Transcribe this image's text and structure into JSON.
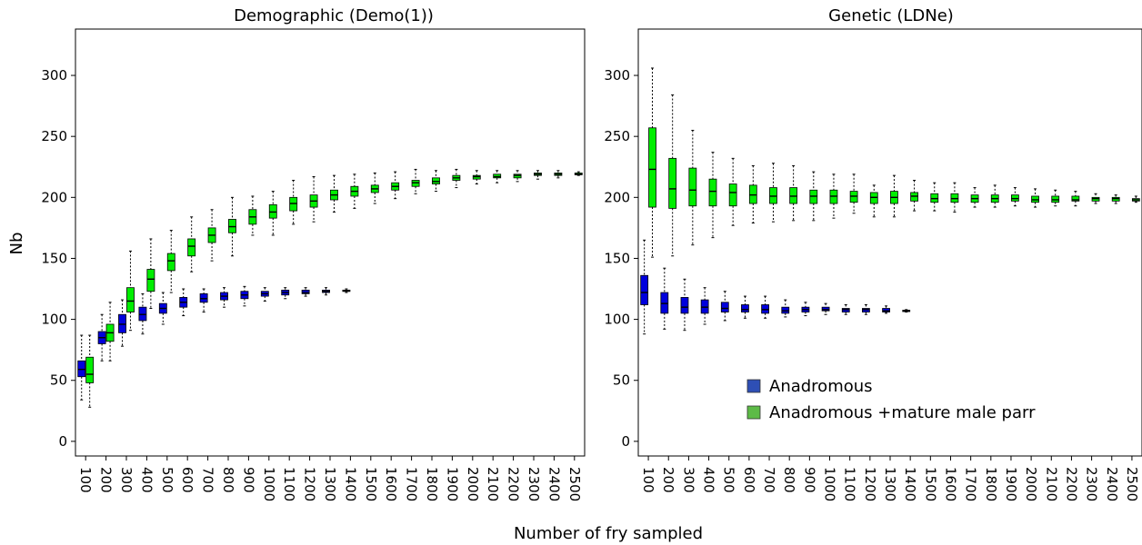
{
  "figure": {
    "xlabel": "Number of fry sampled",
    "ylabel": "Nb"
  },
  "legend": {
    "items": [
      {
        "label": "Anadromous",
        "color": "#2e4fb5"
      },
      {
        "label": "Anadromous +mature male parr",
        "color": "#5dbb47"
      }
    ]
  },
  "chart_data": [
    {
      "type": "box",
      "title": "Demographic (Demo(1))",
      "xlabel": "Number of fry sampled",
      "ylabel": "Nb",
      "ylim": [
        -12,
        338
      ],
      "yticks": [
        0,
        50,
        100,
        150,
        200,
        250,
        300
      ],
      "categories": [
        "100",
        "200",
        "300",
        "400",
        "500",
        "600",
        "700",
        "800",
        "900",
        "1000",
        "1100",
        "1200",
        "1300",
        "1400",
        "1500",
        "1600",
        "1700",
        "1800",
        "1900",
        "2000",
        "2100",
        "2200",
        "2300",
        "2400",
        "2500"
      ],
      "series": [
        {
          "name": "Anadromous",
          "color": "#0000dd",
          "boxes": [
            {
              "x": "100",
              "min": 34,
              "q1": 53,
              "med": 59,
              "q3": 66,
              "max": 87
            },
            {
              "x": "200",
              "min": 66,
              "q1": 80,
              "med": 85,
              "q3": 90,
              "max": 104
            },
            {
              "x": "300",
              "min": 78,
              "q1": 89,
              "med": 96,
              "q3": 104,
              "max": 116
            },
            {
              "x": "400",
              "min": 88,
              "q1": 99,
              "med": 104,
              "q3": 110,
              "max": 121
            },
            {
              "x": "500",
              "min": 96,
              "q1": 105,
              "med": 109,
              "q3": 113,
              "max": 122
            },
            {
              "x": "600",
              "min": 103,
              "q1": 110,
              "med": 114,
              "q3": 118,
              "max": 125
            },
            {
              "x": "700",
              "min": 106,
              "q1": 114,
              "med": 117,
              "q3": 121,
              "max": 125
            },
            {
              "x": "800",
              "min": 110,
              "q1": 116,
              "med": 119,
              "q3": 122,
              "max": 126
            },
            {
              "x": "900",
              "min": 111,
              "q1": 117,
              "med": 120,
              "q3": 123,
              "max": 127
            },
            {
              "x": "1000",
              "min": 115,
              "q1": 119,
              "med": 121,
              "q3": 123,
              "max": 126
            },
            {
              "x": "1100",
              "min": 117,
              "q1": 120,
              "med": 122,
              "q3": 124,
              "max": 126
            },
            {
              "x": "1200",
              "min": 119,
              "q1": 121,
              "med": 122,
              "q3": 124,
              "max": 126
            },
            {
              "x": "1300",
              "min": 120,
              "q1": 122,
              "med": 123,
              "q3": 124,
              "max": 126
            },
            {
              "x": "1400",
              "min": 122,
              "q1": 123,
              "med": 123.5,
              "q3": 124,
              "max": 125
            }
          ]
        },
        {
          "name": "Anadromous +mature male parr",
          "color": "#00ee00",
          "boxes": [
            {
              "x": "100",
              "min": 28,
              "q1": 48,
              "med": 55,
              "q3": 69,
              "max": 87
            },
            {
              "x": "200",
              "min": 66,
              "q1": 82,
              "med": 89,
              "q3": 96,
              "max": 114
            },
            {
              "x": "300",
              "min": 91,
              "q1": 106,
              "med": 115,
              "q3": 126,
              "max": 156
            },
            {
              "x": "400",
              "min": 109,
              "q1": 123,
              "med": 133,
              "q3": 141,
              "max": 166
            },
            {
              "x": "500",
              "min": 122,
              "q1": 140,
              "med": 148,
              "q3": 154,
              "max": 173
            },
            {
              "x": "600",
              "min": 139,
              "q1": 152,
              "med": 160,
              "q3": 166,
              "max": 184
            },
            {
              "x": "700",
              "min": 148,
              "q1": 163,
              "med": 169,
              "q3": 175,
              "max": 190
            },
            {
              "x": "800",
              "min": 152,
              "q1": 171,
              "med": 176,
              "q3": 182,
              "max": 200
            },
            {
              "x": "900",
              "min": 169,
              "q1": 178,
              "med": 184,
              "q3": 190,
              "max": 201
            },
            {
              "x": "1000",
              "min": 169,
              "q1": 183,
              "med": 188,
              "q3": 194,
              "max": 205
            },
            {
              "x": "1100",
              "min": 178,
              "q1": 189,
              "med": 195,
              "q3": 200,
              "max": 214
            },
            {
              "x": "1200",
              "min": 180,
              "q1": 192,
              "med": 197,
              "q3": 202,
              "max": 217
            },
            {
              "x": "1300",
              "min": 188,
              "q1": 198,
              "med": 202,
              "q3": 206,
              "max": 218
            },
            {
              "x": "1400",
              "min": 191,
              "q1": 201,
              "med": 205,
              "q3": 209,
              "max": 219
            },
            {
              "x": "1500",
              "min": 195,
              "q1": 204,
              "med": 207,
              "q3": 210,
              "max": 220
            },
            {
              "x": "1600",
              "min": 199,
              "q1": 206,
              "med": 209,
              "q3": 212,
              "max": 221
            },
            {
              "x": "1700",
              "min": 203,
              "q1": 209,
              "med": 212,
              "q3": 214,
              "max": 223
            },
            {
              "x": "1800",
              "min": 205,
              "q1": 211,
              "med": 213,
              "q3": 216,
              "max": 222
            },
            {
              "x": "1900",
              "min": 208,
              "q1": 214,
              "med": 216,
              "q3": 218,
              "max": 223
            },
            {
              "x": "2000",
              "min": 211,
              "q1": 215,
              "med": 217,
              "q3": 218,
              "max": 222
            },
            {
              "x": "2100",
              "min": 212,
              "q1": 216,
              "med": 217,
              "q3": 219,
              "max": 222
            },
            {
              "x": "2200",
              "min": 213,
              "q1": 216,
              "med": 218,
              "q3": 219,
              "max": 222
            },
            {
              "x": "2300",
              "min": 215,
              "q1": 218,
              "med": 219,
              "q3": 220,
              "max": 222
            },
            {
              "x": "2400",
              "min": 216,
              "q1": 218,
              "med": 219,
              "q3": 220,
              "max": 222
            },
            {
              "x": "2500",
              "min": 218,
              "q1": 218.5,
              "med": 219,
              "q3": 220,
              "max": 221
            }
          ]
        }
      ]
    },
    {
      "type": "box",
      "title": "Genetic (LDNe)",
      "xlabel": "Number of fry sampled",
      "ylabel": "Nb",
      "ylim": [
        -12,
        338
      ],
      "yticks": [
        0,
        50,
        100,
        150,
        200,
        250,
        300
      ],
      "categories": [
        "100",
        "200",
        "300",
        "400",
        "500",
        "600",
        "700",
        "800",
        "900",
        "1000",
        "1100",
        "1200",
        "1300",
        "1400",
        "1500",
        "1600",
        "1700",
        "1800",
        "1900",
        "2000",
        "2100",
        "2200",
        "2300",
        "2400",
        "2500"
      ],
      "series": [
        {
          "name": "Anadromous",
          "color": "#0000dd",
          "boxes": [
            {
              "x": "100",
              "min": 88,
              "q1": 112,
              "med": 122,
              "q3": 136,
              "max": 165
            },
            {
              "x": "200",
              "min": 92,
              "q1": 105,
              "med": 113,
              "q3": 122,
              "max": 142
            },
            {
              "x": "300",
              "min": 91,
              "q1": 105,
              "med": 110,
              "q3": 118,
              "max": 133
            },
            {
              "x": "400",
              "min": 96,
              "q1": 105,
              "med": 110,
              "q3": 116,
              "max": 126
            },
            {
              "x": "500",
              "min": 99,
              "q1": 106,
              "med": 109,
              "q3": 114,
              "max": 123
            },
            {
              "x": "600",
              "min": 101,
              "q1": 106,
              "med": 108,
              "q3": 112,
              "max": 119
            },
            {
              "x": "700",
              "min": 101,
              "q1": 105,
              "med": 108,
              "q3": 112,
              "max": 119
            },
            {
              "x": "800",
              "min": 102,
              "q1": 105,
              "med": 107,
              "q3": 110,
              "max": 116
            },
            {
              "x": "900",
              "min": 103,
              "q1": 106,
              "med": 108,
              "q3": 110,
              "max": 114
            },
            {
              "x": "1000",
              "min": 104,
              "q1": 107,
              "med": 108,
              "q3": 110,
              "max": 113
            },
            {
              "x": "1100",
              "min": 104,
              "q1": 106,
              "med": 108,
              "q3": 109,
              "max": 112
            },
            {
              "x": "1200",
              "min": 104,
              "q1": 106,
              "med": 108,
              "q3": 109,
              "max": 112
            },
            {
              "x": "1300",
              "min": 105,
              "q1": 106,
              "med": 107,
              "q3": 109,
              "max": 111
            },
            {
              "x": "1400",
              "min": 106,
              "q1": 106.5,
              "med": 107,
              "q3": 107.5,
              "max": 108
            }
          ]
        },
        {
          "name": "Anadromous +mature male parr",
          "color": "#00ee00",
          "boxes": [
            {
              "x": "100",
              "min": 151,
              "q1": 192,
              "med": 223,
              "q3": 257,
              "max": 306
            },
            {
              "x": "200",
              "min": 152,
              "q1": 191,
              "med": 207,
              "q3": 232,
              "max": 284
            },
            {
              "x": "300",
              "min": 161,
              "q1": 193,
              "med": 206,
              "q3": 224,
              "max": 255
            },
            {
              "x": "400",
              "min": 167,
              "q1": 193,
              "med": 205,
              "q3": 215,
              "max": 237
            },
            {
              "x": "500",
              "min": 177,
              "q1": 193,
              "med": 204,
              "q3": 211,
              "max": 232
            },
            {
              "x": "600",
              "min": 179,
              "q1": 195,
              "med": 202,
              "q3": 210,
              "max": 226
            },
            {
              "x": "700",
              "min": 180,
              "q1": 195,
              "med": 201,
              "q3": 208,
              "max": 228
            },
            {
              "x": "800",
              "min": 181,
              "q1": 195,
              "med": 201,
              "q3": 208,
              "max": 226
            },
            {
              "x": "900",
              "min": 181,
              "q1": 195,
              "med": 201,
              "q3": 206,
              "max": 221
            },
            {
              "x": "1000",
              "min": 183,
              "q1": 195,
              "med": 201,
              "q3": 206,
              "max": 219
            },
            {
              "x": "1100",
              "min": 187,
              "q1": 196,
              "med": 201,
              "q3": 205,
              "max": 219
            },
            {
              "x": "1200",
              "min": 184,
              "q1": 195,
              "med": 200,
              "q3": 204,
              "max": 210
            },
            {
              "x": "1300",
              "min": 184,
              "q1": 195,
              "med": 200,
              "q3": 205,
              "max": 218
            },
            {
              "x": "1400",
              "min": 189,
              "q1": 197,
              "med": 201,
              "q3": 204,
              "max": 214
            },
            {
              "x": "1500",
              "min": 189,
              "q1": 196,
              "med": 199,
              "q3": 203,
              "max": 212
            },
            {
              "x": "1600",
              "min": 188,
              "q1": 196,
              "med": 199,
              "q3": 203,
              "max": 212
            },
            {
              "x": "1700",
              "min": 192,
              "q1": 196,
              "med": 199,
              "q3": 202,
              "max": 208
            },
            {
              "x": "1800",
              "min": 192,
              "q1": 196,
              "med": 199,
              "q3": 202,
              "max": 210
            },
            {
              "x": "1900",
              "min": 193,
              "q1": 197,
              "med": 199,
              "q3": 202,
              "max": 208
            },
            {
              "x": "2000",
              "min": 192,
              "q1": 196,
              "med": 198,
              "q3": 201,
              "max": 207
            },
            {
              "x": "2100",
              "min": 193,
              "q1": 196,
              "med": 198,
              "q3": 201,
              "max": 206
            },
            {
              "x": "2200",
              "min": 193,
              "q1": 197,
              "med": 198,
              "q3": 201,
              "max": 205
            },
            {
              "x": "2300",
              "min": 195,
              "q1": 197,
              "med": 199,
              "q3": 200,
              "max": 203
            },
            {
              "x": "2400",
              "min": 195,
              "q1": 197,
              "med": 199,
              "q3": 200,
              "max": 202
            },
            {
              "x": "2500",
              "min": 196,
              "q1": 197,
              "med": 198,
              "q3": 199,
              "max": 201
            }
          ]
        }
      ]
    }
  ]
}
